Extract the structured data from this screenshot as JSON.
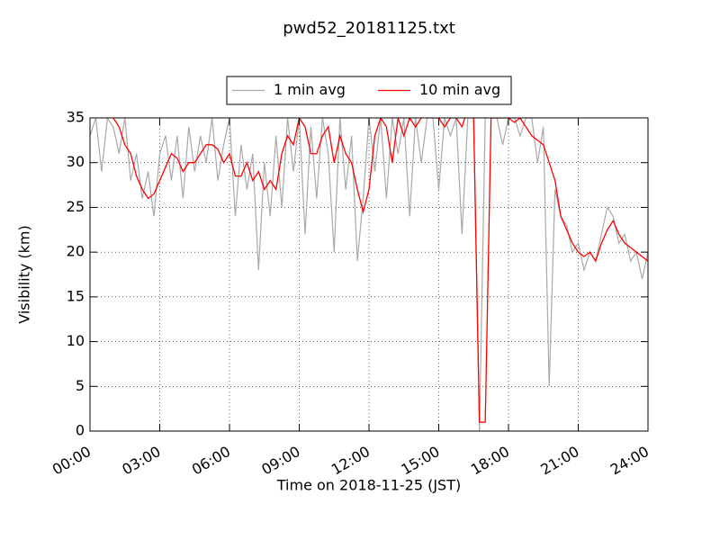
{
  "chart_data": {
    "type": "line",
    "title": "pwd52_20181125.txt",
    "x_label": "Time on 2018-11-25 (JST)",
    "y_label": "Visibility (km)",
    "x": [
      0,
      0.25,
      0.5,
      0.75,
      1,
      1.25,
      1.5,
      1.75,
      2,
      2.25,
      2.5,
      2.75,
      3,
      3.25,
      3.5,
      3.75,
      4,
      4.25,
      4.5,
      4.75,
      5,
      5.25,
      5.5,
      5.75,
      6,
      6.25,
      6.5,
      6.75,
      7,
      7.25,
      7.5,
      7.75,
      8,
      8.25,
      8.5,
      8.75,
      9,
      9.25,
      9.5,
      9.75,
      10,
      10.25,
      10.5,
      10.75,
      11,
      11.25,
      11.5,
      11.75,
      12,
      12.25,
      12.5,
      12.75,
      13,
      13.25,
      13.5,
      13.75,
      14,
      14.25,
      14.5,
      14.75,
      15,
      15.25,
      15.5,
      15.75,
      16,
      16.25,
      16.5,
      16.75,
      17,
      17.25,
      17.5,
      17.75,
      18,
      18.25,
      18.5,
      18.75,
      19,
      19.25,
      19.5,
      19.75,
      20,
      20.25,
      20.5,
      20.75,
      21,
      21.25,
      21.5,
      21.75,
      22,
      22.25,
      22.5,
      22.75,
      23,
      23.25,
      23.5,
      23.75,
      24
    ],
    "series": [
      {
        "name": "1 min avg",
        "color": "#a9a9a9",
        "values": [
          33,
          35,
          29,
          35,
          34,
          31,
          35,
          28,
          31,
          26,
          29,
          24,
          31,
          33,
          28,
          33,
          26,
          34,
          29,
          33,
          30,
          35,
          28,
          32,
          35,
          24,
          32,
          27,
          31,
          18,
          30,
          24,
          33,
          25,
          35,
          29,
          35,
          22,
          34,
          26,
          35,
          31,
          20,
          35,
          27,
          33,
          19,
          26,
          35,
          29,
          35,
          26,
          35,
          31,
          35,
          24,
          35,
          30,
          35,
          35,
          27,
          35,
          33,
          35,
          22,
          35,
          35,
          0,
          35,
          35,
          35,
          32,
          35,
          35,
          33,
          35,
          35,
          30,
          34,
          5,
          27,
          24,
          23,
          20,
          21,
          18,
          20,
          19,
          22,
          25,
          24,
          21,
          22,
          19,
          20,
          17,
          20
        ]
      },
      {
        "name": "10 min avg",
        "color": "#ff0000",
        "values": [
          35,
          36,
          35,
          35.5,
          35,
          34,
          32,
          31,
          28.5,
          27,
          26,
          26.5,
          28,
          29.5,
          31,
          30.5,
          29,
          30,
          30,
          31,
          32,
          32,
          31.5,
          30,
          31,
          28.5,
          28.5,
          30,
          28,
          29,
          27,
          28,
          27,
          31,
          33,
          32,
          35,
          34,
          31,
          31,
          33,
          34,
          30,
          33,
          31,
          30,
          27,
          24.5,
          27,
          33,
          35,
          34,
          30,
          35,
          33,
          35,
          34,
          35,
          36,
          35,
          35,
          34,
          35,
          35,
          34,
          36,
          35,
          1,
          1,
          35,
          35,
          35,
          35,
          34.5,
          35,
          34,
          33,
          32.5,
          32,
          30,
          28,
          24,
          22.5,
          21,
          20,
          19.5,
          20,
          19,
          21,
          22.5,
          23.5,
          22,
          21,
          20.5,
          20,
          19.5,
          19
        ]
      }
    ],
    "xlim": [
      0,
      24
    ],
    "xticks": [
      {
        "value": 0,
        "label": "00:00"
      },
      {
        "value": 3,
        "label": "03:00"
      },
      {
        "value": 6,
        "label": "06:00"
      },
      {
        "value": 9,
        "label": "09:00"
      },
      {
        "value": 12,
        "label": "12:00"
      },
      {
        "value": 15,
        "label": "15:00"
      },
      {
        "value": 18,
        "label": "18:00"
      },
      {
        "value": 21,
        "label": "21:00"
      },
      {
        "value": 24,
        "label": "24:00"
      }
    ],
    "ylim": [
      0,
      35
    ],
    "yticks": [
      0,
      5,
      10,
      15,
      20,
      25,
      30,
      35
    ],
    "grid": true,
    "legend": "top"
  }
}
